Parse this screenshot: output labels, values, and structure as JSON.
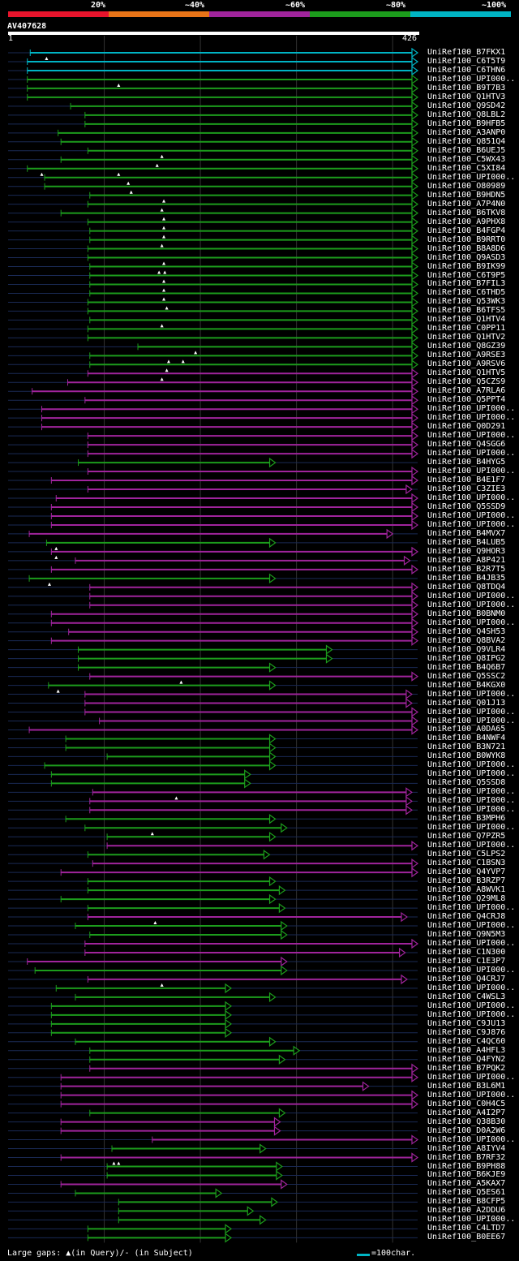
{
  "legend": {
    "items": [
      {
        "label": "20%",
        "color": "#e8142c"
      },
      {
        "label": "~40%",
        "color": "#e87418"
      },
      {
        "label": "~60%",
        "color": "#a0249c"
      },
      {
        "label": "~80%",
        "color": "#1c9c1c"
      },
      {
        "label": "~100%",
        "color": "#00b4c4"
      }
    ]
  },
  "query": {
    "name": "AV407628",
    "start": "1",
    "end": "426",
    "length": 426
  },
  "footer": {
    "gaps_text": "Large gaps: ▲(in Query)/- (in Subject)",
    "scale_text": "=100char."
  },
  "hits": [
    {
      "name": "UniRef100_B7FKX1",
      "s": 23,
      "e": 426,
      "c": "c",
      "g": [
        40
      ]
    },
    {
      "name": "UniRef100_C6T5T9",
      "s": 20,
      "e": 426,
      "c": "c",
      "g": []
    },
    {
      "name": "UniRef100_C6THN6",
      "s": 20,
      "e": 426,
      "c": "c",
      "g": []
    },
    {
      "name": "UniRef100_UPI000..",
      "s": 20,
      "e": 426,
      "c": "g",
      "g": [
        115
      ]
    },
    {
      "name": "UniRef100_B9T7B3",
      "s": 20,
      "e": 426,
      "c": "g",
      "g": []
    },
    {
      "name": "UniRef100_Q1HTV3",
      "s": 20,
      "e": 426,
      "c": "g",
      "g": []
    },
    {
      "name": "UniRef100_Q9SD42",
      "s": 65,
      "e": 426,
      "c": "g",
      "g": []
    },
    {
      "name": "UniRef100_Q8LBL2",
      "s": 80,
      "e": 426,
      "c": "g",
      "g": []
    },
    {
      "name": "UniRef100_B9HFB5",
      "s": 80,
      "e": 426,
      "c": "g",
      "g": []
    },
    {
      "name": "UniRef100_A3ANP0",
      "s": 52,
      "e": 426,
      "c": "g",
      "g": []
    },
    {
      "name": "UniRef100_Q851Q4",
      "s": 55,
      "e": 426,
      "c": "g",
      "g": []
    },
    {
      "name": "UniRef100_B6UEJ5",
      "s": 83,
      "e": 426,
      "c": "g",
      "g": [
        160
      ]
    },
    {
      "name": "UniRef100_C5WX43",
      "s": 55,
      "e": 426,
      "c": "g",
      "g": [
        155
      ]
    },
    {
      "name": "UniRef100_C5XI84",
      "s": 20,
      "e": 426,
      "c": "g",
      "g": [
        35,
        115
      ]
    },
    {
      "name": "UniRef100_UPI000..",
      "s": 38,
      "e": 426,
      "c": "g",
      "g": [
        125
      ]
    },
    {
      "name": "UniRef100_O80989",
      "s": 38,
      "e": 426,
      "c": "g",
      "g": [
        128
      ]
    },
    {
      "name": "UniRef100_B9HDN5",
      "s": 85,
      "e": 426,
      "c": "g",
      "g": [
        162
      ]
    },
    {
      "name": "UniRef100_A7P4N0",
      "s": 83,
      "e": 426,
      "c": "g",
      "g": [
        160
      ]
    },
    {
      "name": "UniRef100_B6TKV8",
      "s": 55,
      "e": 426,
      "c": "g",
      "g": [
        162
      ]
    },
    {
      "name": "UniRef100_A9PHX8",
      "s": 83,
      "e": 426,
      "c": "g",
      "g": [
        162
      ]
    },
    {
      "name": "UniRef100_B4FGP4",
      "s": 85,
      "e": 426,
      "c": "g",
      "g": [
        162
      ]
    },
    {
      "name": "UniRef100_B9RRT0",
      "s": 85,
      "e": 426,
      "c": "g",
      "g": [
        160
      ]
    },
    {
      "name": "UniRef100_B8A8D6",
      "s": 83,
      "e": 426,
      "c": "g",
      "g": []
    },
    {
      "name": "UniRef100_Q9ASD3",
      "s": 83,
      "e": 426,
      "c": "g",
      "g": [
        162
      ]
    },
    {
      "name": "UniRef100_B9IK99",
      "s": 85,
      "e": 426,
      "c": "g",
      "g": [
        157,
        163
      ]
    },
    {
      "name": "UniRef100_C6T9P5",
      "s": 85,
      "e": 426,
      "c": "g",
      "g": [
        162
      ]
    },
    {
      "name": "UniRef100_B7FIL3",
      "s": 85,
      "e": 426,
      "c": "g",
      "g": [
        162
      ]
    },
    {
      "name": "UniRef100_C6THD5",
      "s": 85,
      "e": 426,
      "c": "g",
      "g": [
        162
      ]
    },
    {
      "name": "UniRef100_Q53WK3",
      "s": 83,
      "e": 426,
      "c": "g",
      "g": [
        165
      ]
    },
    {
      "name": "UniRef100_B6TFS5",
      "s": 83,
      "e": 426,
      "c": "g",
      "g": []
    },
    {
      "name": "UniRef100_Q1HTV4",
      "s": 85,
      "e": 426,
      "c": "g",
      "g": [
        160
      ]
    },
    {
      "name": "UniRef100_C0PP11",
      "s": 83,
      "e": 426,
      "c": "g",
      "g": []
    },
    {
      "name": "UniRef100_Q1HTV2",
      "s": 83,
      "e": 426,
      "c": "g",
      "g": []
    },
    {
      "name": "UniRef100_Q8GZ39",
      "s": 135,
      "e": 426,
      "c": "g",
      "g": [
        195
      ]
    },
    {
      "name": "UniRef100_A9RSE3",
      "s": 85,
      "e": 426,
      "c": "g",
      "g": [
        167,
        182
      ]
    },
    {
      "name": "UniRef100_A9RSV6",
      "s": 85,
      "e": 426,
      "c": "g",
      "g": [
        165
      ]
    },
    {
      "name": "UniRef100_Q1HTV5",
      "s": 83,
      "e": 426,
      "c": "p",
      "g": [
        160
      ]
    },
    {
      "name": "UniRef100_Q5CZS9",
      "s": 62,
      "e": 426,
      "c": "p",
      "g": []
    },
    {
      "name": "UniRef100_A7RLA6",
      "s": 25,
      "e": 426,
      "c": "p",
      "g": []
    },
    {
      "name": "UniRef100_Q5PPT4",
      "s": 80,
      "e": 426,
      "c": "p",
      "g": []
    },
    {
      "name": "UniRef100_UPI000..",
      "s": 35,
      "e": 426,
      "c": "p",
      "g": []
    },
    {
      "name": "UniRef100_UPI000..",
      "s": 35,
      "e": 426,
      "c": "p",
      "g": []
    },
    {
      "name": "UniRef100_Q0D291",
      "s": 35,
      "e": 426,
      "c": "p",
      "g": []
    },
    {
      "name": "UniRef100_UPI000..",
      "s": 83,
      "e": 426,
      "c": "p",
      "g": []
    },
    {
      "name": "UniRef100_Q4SGG6",
      "s": 83,
      "e": 426,
      "c": "p",
      "g": []
    },
    {
      "name": "UniRef100_UPI000..",
      "s": 83,
      "e": 426,
      "c": "p",
      "g": []
    },
    {
      "name": "UniRef100_B4HYG5",
      "s": 73,
      "e": 278,
      "c": "g",
      "g": []
    },
    {
      "name": "UniRef100_UPI000..",
      "s": 83,
      "e": 426,
      "c": "p",
      "g": []
    },
    {
      "name": "UniRef100_B4E1F7",
      "s": 45,
      "e": 426,
      "c": "p",
      "g": []
    },
    {
      "name": "UniRef100_C3ZIE3",
      "s": 83,
      "e": 420,
      "c": "p",
      "g": []
    },
    {
      "name": "UniRef100_UPI000..",
      "s": 50,
      "e": 426,
      "c": "p",
      "g": []
    },
    {
      "name": "UniRef100_Q5SSD9",
      "s": 45,
      "e": 426,
      "c": "p",
      "g": []
    },
    {
      "name": "UniRef100_UPI000..",
      "s": 45,
      "e": 426,
      "c": "p",
      "g": []
    },
    {
      "name": "UniRef100_UPI000..",
      "s": 45,
      "e": 426,
      "c": "p",
      "g": []
    },
    {
      "name": "UniRef100_B4MVX7",
      "s": 22,
      "e": 400,
      "c": "p",
      "g": []
    },
    {
      "name": "UniRef100_B4LUB5",
      "s": 40,
      "e": 278,
      "c": "g",
      "g": [
        50
      ]
    },
    {
      "name": "UniRef100_Q9HOR3",
      "s": 45,
      "e": 426,
      "c": "p",
      "g": [
        50
      ]
    },
    {
      "name": "UniRef100_A8P421",
      "s": 70,
      "e": 418,
      "c": "p",
      "g": []
    },
    {
      "name": "UniRef100_B2R7T5",
      "s": 45,
      "e": 426,
      "c": "p",
      "g": []
    },
    {
      "name": "UniRef100_B4JB35",
      "s": 22,
      "e": 278,
      "c": "g",
      "g": [
        43
      ]
    },
    {
      "name": "UniRef100_Q8TDQ4",
      "s": 85,
      "e": 426,
      "c": "p",
      "g": []
    },
    {
      "name": "UniRef100_UPI000..",
      "s": 85,
      "e": 426,
      "c": "p",
      "g": []
    },
    {
      "name": "UniRef100_UPI000..",
      "s": 85,
      "e": 426,
      "c": "p",
      "g": []
    },
    {
      "name": "UniRef100_B0BNM0",
      "s": 45,
      "e": 426,
      "c": "p",
      "g": []
    },
    {
      "name": "UniRef100_UPI000..",
      "s": 45,
      "e": 426,
      "c": "p",
      "g": []
    },
    {
      "name": "UniRef100_Q4SH53",
      "s": 63,
      "e": 426,
      "c": "p",
      "g": []
    },
    {
      "name": "UniRef100_Q8BVA2",
      "s": 45,
      "e": 426,
      "c": "p",
      "g": []
    },
    {
      "name": "UniRef100_Q9VLR4",
      "s": 73,
      "e": 337,
      "c": "g",
      "g": []
    },
    {
      "name": "UniRef100_Q8IPG2",
      "s": 73,
      "e": 337,
      "c": "g",
      "g": []
    },
    {
      "name": "UniRef100_B4Q6B7",
      "s": 73,
      "e": 278,
      "c": "g",
      "g": []
    },
    {
      "name": "UniRef100_Q5SSC2",
      "s": 85,
      "e": 426,
      "c": "p",
      "g": [
        180
      ]
    },
    {
      "name": "UniRef100_B4KGX0",
      "s": 42,
      "e": 278,
      "c": "g",
      "g": [
        52
      ]
    },
    {
      "name": "UniRef100_UPI000..",
      "s": 80,
      "e": 420,
      "c": "p",
      "g": []
    },
    {
      "name": "UniRef100_Q01J13",
      "s": 80,
      "e": 420,
      "c": "p",
      "g": []
    },
    {
      "name": "UniRef100_UPI000..",
      "s": 80,
      "e": 426,
      "c": "p",
      "g": []
    },
    {
      "name": "UniRef100_UPI000..",
      "s": 95,
      "e": 426,
      "c": "p",
      "g": []
    },
    {
      "name": "UniRef100_A0DA65",
      "s": 22,
      "e": 426,
      "c": "p",
      "g": []
    },
    {
      "name": "UniRef100_B4NWF4",
      "s": 60,
      "e": 278,
      "c": "g",
      "g": []
    },
    {
      "name": "UniRef100_B3N721",
      "s": 60,
      "e": 278,
      "c": "g",
      "g": []
    },
    {
      "name": "UniRef100_B0WYK8",
      "s": 103,
      "e": 278,
      "c": "g",
      "g": []
    },
    {
      "name": "UniRef100_UPI000..",
      "s": 38,
      "e": 278,
      "c": "g",
      "g": []
    },
    {
      "name": "UniRef100_UPI000..",
      "s": 45,
      "e": 252,
      "c": "g",
      "g": []
    },
    {
      "name": "UniRef100_Q5SSD8",
      "s": 45,
      "e": 252,
      "c": "g",
      "g": []
    },
    {
      "name": "UniRef100_UPI000..",
      "s": 88,
      "e": 420,
      "c": "p",
      "g": [
        175
      ]
    },
    {
      "name": "UniRef100_UPI000..",
      "s": 85,
      "e": 420,
      "c": "p",
      "g": []
    },
    {
      "name": "UniRef100_UPI000..",
      "s": 85,
      "e": 420,
      "c": "p",
      "g": []
    },
    {
      "name": "UniRef100_B3MPH6",
      "s": 60,
      "e": 278,
      "c": "g",
      "g": []
    },
    {
      "name": "UniRef100_UPI000..",
      "s": 80,
      "e": 290,
      "c": "g",
      "g": [
        150
      ]
    },
    {
      "name": "UniRef100_Q7PZR5",
      "s": 103,
      "e": 278,
      "c": "g",
      "g": []
    },
    {
      "name": "UniRef100_UPI000..",
      "s": 103,
      "e": 426,
      "c": "p",
      "g": []
    },
    {
      "name": "UniRef100_C5LPS2",
      "s": 83,
      "e": 272,
      "c": "g",
      "g": []
    },
    {
      "name": "UniRef100_C1BSN3",
      "s": 88,
      "e": 426,
      "c": "p",
      "g": []
    },
    {
      "name": "UniRef100_Q4YVP7",
      "s": 55,
      "e": 426,
      "c": "p",
      "g": []
    },
    {
      "name": "UniRef100_B3RZP7",
      "s": 83,
      "e": 278,
      "c": "g",
      "g": []
    },
    {
      "name": "UniRef100_A8WVK1",
      "s": 83,
      "e": 288,
      "c": "g",
      "g": []
    },
    {
      "name": "UniRef100_Q29ML8",
      "s": 55,
      "e": 278,
      "c": "g",
      "g": []
    },
    {
      "name": "UniRef100_UPI000..",
      "s": 83,
      "e": 288,
      "c": "g",
      "g": []
    },
    {
      "name": "UniRef100_Q4CRJ8",
      "s": 83,
      "e": 415,
      "c": "p",
      "g": [
        153
      ]
    },
    {
      "name": "UniRef100_UPI000..",
      "s": 70,
      "e": 290,
      "c": "g",
      "g": []
    },
    {
      "name": "UniRef100_Q9N5M3",
      "s": 85,
      "e": 290,
      "c": "g",
      "g": []
    },
    {
      "name": "UniRef100_UPI000..",
      "s": 80,
      "e": 426,
      "c": "p",
      "g": []
    },
    {
      "name": "UniRef100_C1N300",
      "s": 80,
      "e": 413,
      "c": "p",
      "g": []
    },
    {
      "name": "UniRef100_C1E3P7",
      "s": 20,
      "e": 290,
      "c": "p",
      "g": []
    },
    {
      "name": "UniRef100_UPI000..",
      "s": 28,
      "e": 290,
      "c": "g",
      "g": []
    },
    {
      "name": "UniRef100_Q4CRJ7",
      "s": 83,
      "e": 415,
      "c": "p",
      "g": [
        160
      ]
    },
    {
      "name": "UniRef100_UPI000..",
      "s": 50,
      "e": 232,
      "c": "g",
      "g": []
    },
    {
      "name": "UniRef100_C4WSL3",
      "s": 70,
      "e": 278,
      "c": "g",
      "g": []
    },
    {
      "name": "UniRef100_UPI000..",
      "s": 45,
      "e": 232,
      "c": "g",
      "g": []
    },
    {
      "name": "UniRef100_UPI000..",
      "s": 45,
      "e": 232,
      "c": "g",
      "g": []
    },
    {
      "name": "UniRef100_C9JU13",
      "s": 45,
      "e": 232,
      "c": "g",
      "g": []
    },
    {
      "name": "UniRef100_C9J876",
      "s": 45,
      "e": 232,
      "c": "g",
      "g": []
    },
    {
      "name": "UniRef100_C4QC60",
      "s": 70,
      "e": 278,
      "c": "g",
      "g": []
    },
    {
      "name": "UniRef100_A4HFL3",
      "s": 85,
      "e": 303,
      "c": "g",
      "g": []
    },
    {
      "name": "UniRef100_Q4FYN2",
      "s": 85,
      "e": 288,
      "c": "g",
      "g": []
    },
    {
      "name": "UniRef100_B7PQK2",
      "s": 85,
      "e": 426,
      "c": "p",
      "g": []
    },
    {
      "name": "UniRef100_UPI000..",
      "s": 55,
      "e": 426,
      "c": "p",
      "g": []
    },
    {
      "name": "UniRef100_B3L6M1",
      "s": 55,
      "e": 375,
      "c": "p",
      "g": []
    },
    {
      "name": "UniRef100_UPI000..",
      "s": 55,
      "e": 426,
      "c": "p",
      "g": []
    },
    {
      "name": "UniRef100_C0H4C5",
      "s": 55,
      "e": 426,
      "c": "p",
      "g": []
    },
    {
      "name": "UniRef100_A4I2P7",
      "s": 85,
      "e": 288,
      "c": "g",
      "g": []
    },
    {
      "name": "UniRef100_Q38B30",
      "s": 55,
      "e": 283,
      "c": "p",
      "g": []
    },
    {
      "name": "UniRef100_D0A2W6",
      "s": 55,
      "e": 283,
      "c": "p",
      "g": []
    },
    {
      "name": "UniRef100_UPI000..",
      "s": 150,
      "e": 426,
      "c": "p",
      "g": []
    },
    {
      "name": "UniRef100_A8IYV4",
      "s": 108,
      "e": 268,
      "c": "g",
      "g": []
    },
    {
      "name": "UniRef100_B7RF32",
      "s": 55,
      "e": 426,
      "c": "p",
      "g": [
        110,
        115
      ]
    },
    {
      "name": "UniRef100_B9PH88",
      "s": 103,
      "e": 285,
      "c": "g",
      "g": []
    },
    {
      "name": "UniRef100_B6KJE9",
      "s": 103,
      "e": 285,
      "c": "g",
      "g": []
    },
    {
      "name": "UniRef100_A5KAX7",
      "s": 55,
      "e": 290,
      "c": "p",
      "g": []
    },
    {
      "name": "UniRef100_Q5ES61",
      "s": 70,
      "e": 222,
      "c": "g",
      "g": []
    },
    {
      "name": "UniRef100_B8CFP5",
      "s": 115,
      "e": 280,
      "c": "g",
      "g": []
    },
    {
      "name": "UniRef100_A2DDU6",
      "s": 115,
      "e": 255,
      "c": "g",
      "g": []
    },
    {
      "name": "UniRef100_UPI000..",
      "s": 115,
      "e": 268,
      "c": "g",
      "g": []
    },
    {
      "name": "UniRef100_C4LTD7",
      "s": 83,
      "e": 232,
      "c": "g",
      "g": []
    },
    {
      "name": "UniRef100_B0EE67",
      "s": 83,
      "e": 232,
      "c": "g",
      "g": []
    }
  ]
}
